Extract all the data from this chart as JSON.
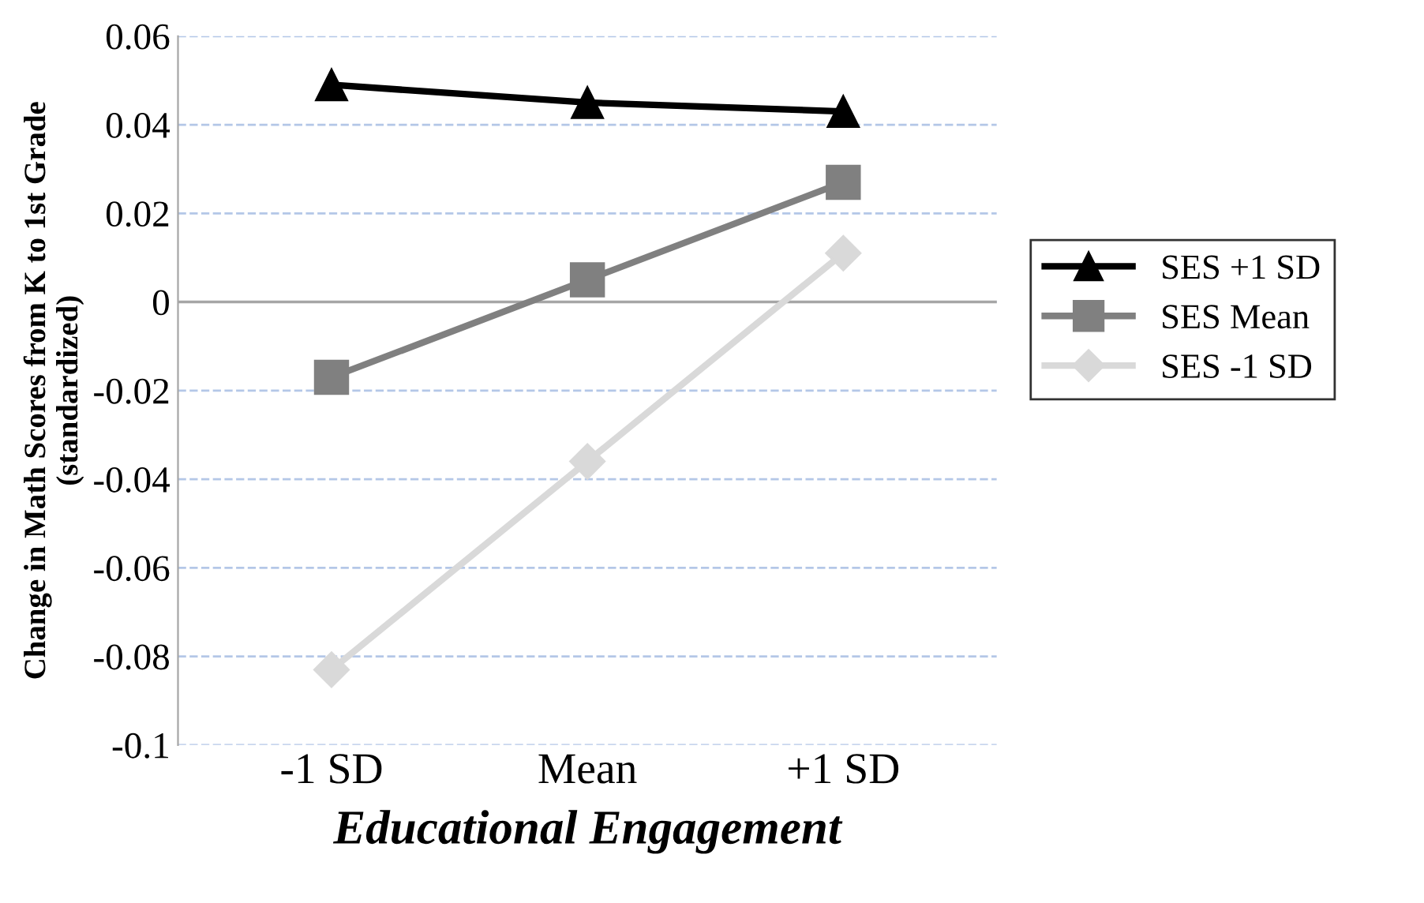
{
  "chart_data": {
    "type": "line",
    "xlabel": "Educational Engagement",
    "ylabel": "Change in Math Scores from K to 1st Grade\n(standardized)",
    "categories": [
      "-1 SD",
      "Mean",
      "+1 SD"
    ],
    "series": [
      {
        "name": "SES +1 SD",
        "color": "#000000",
        "marker": "triangle",
        "values": [
          0.049,
          0.045,
          0.043
        ]
      },
      {
        "name": "SES Mean",
        "color": "#808080",
        "marker": "square",
        "values": [
          -0.017,
          0.005,
          0.027
        ]
      },
      {
        "name": "SES -1 SD",
        "color": "#d9d9d9",
        "marker": "diamond",
        "values": [
          -0.083,
          -0.036,
          0.011
        ]
      }
    ],
    "ylim": [
      -0.1,
      0.06
    ],
    "yticks": [
      {
        "value": -0.1,
        "label": "-0.1"
      },
      {
        "value": -0.08,
        "label": "-0.08"
      },
      {
        "value": -0.06,
        "label": "-0.06"
      },
      {
        "value": -0.04,
        "label": "-0.04"
      },
      {
        "value": -0.02,
        "label": "-0.02"
      },
      0,
      {
        "value": 0.02,
        "label": "0.02"
      },
      {
        "value": 0.04,
        "label": "0.04"
      },
      {
        "value": 0.06,
        "label": "0.06"
      }
    ],
    "grid": "y",
    "legend": "right",
    "line_style": "solid",
    "ref_lines": [
      {
        "axis": "y",
        "value": 0,
        "color": "#a6a6a6",
        "line_style": "solid"
      }
    ]
  }
}
